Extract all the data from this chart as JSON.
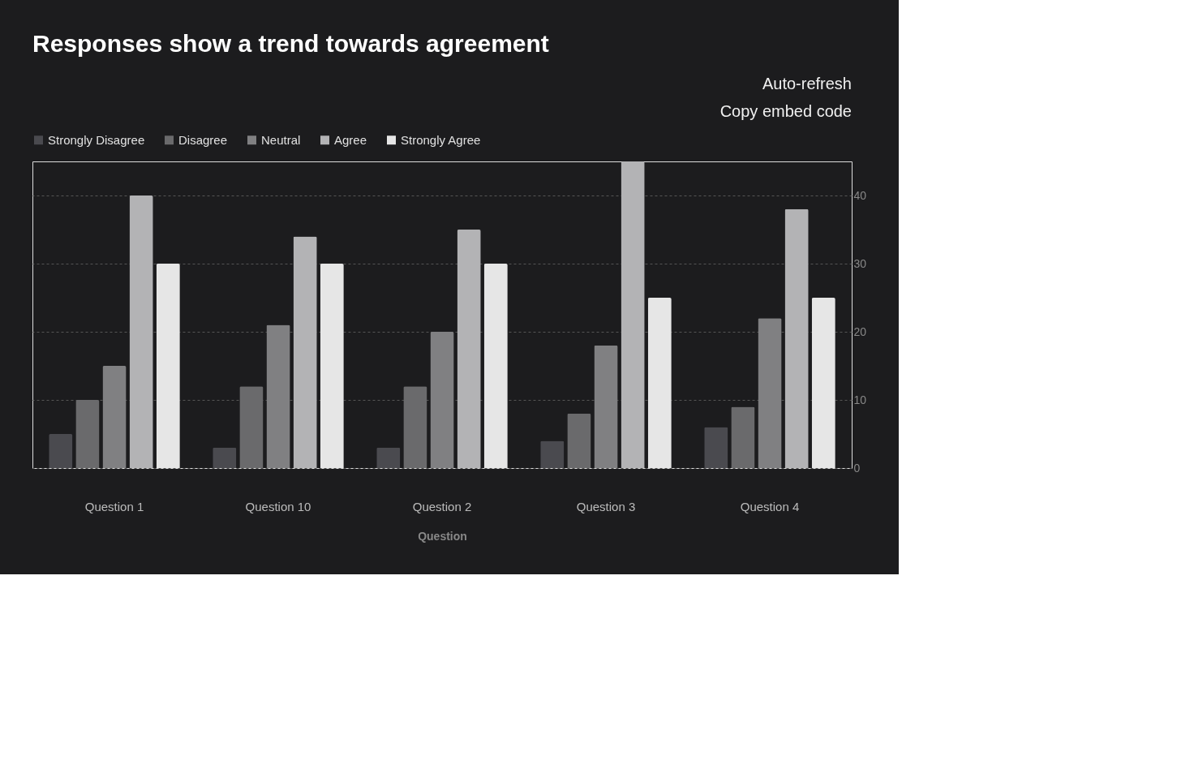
{
  "chart_data": {
    "type": "bar",
    "title": "Responses show a trend towards agreement",
    "xlabel": "Question",
    "categories": [
      "Question 1",
      "Question 10",
      "Question 2",
      "Question 3",
      "Question 4"
    ],
    "series": [
      {
        "name": "Strongly Disagree",
        "color": "#4a4a4f",
        "values": [
          5,
          3,
          3,
          4,
          6
        ]
      },
      {
        "name": "Disagree",
        "color": "#6a6a6c",
        "values": [
          10,
          12,
          12,
          8,
          9
        ]
      },
      {
        "name": "Neutral",
        "color": "#808082",
        "values": [
          15,
          21,
          20,
          18,
          22
        ]
      },
      {
        "name": "Agree",
        "color": "#b3b3b5",
        "values": [
          40,
          34,
          35,
          45,
          38
        ]
      },
      {
        "name": "Strongly Agree",
        "color": "#e6e6e6",
        "values": [
          30,
          30,
          30,
          25,
          25
        ]
      }
    ],
    "ylim": [
      0,
      45
    ],
    "yticks": [
      0,
      10,
      20,
      30,
      40
    ],
    "grid": "y",
    "legend": "top left",
    "annotations": [
      "Auto-refresh",
      "Copy embed code"
    ]
  }
}
